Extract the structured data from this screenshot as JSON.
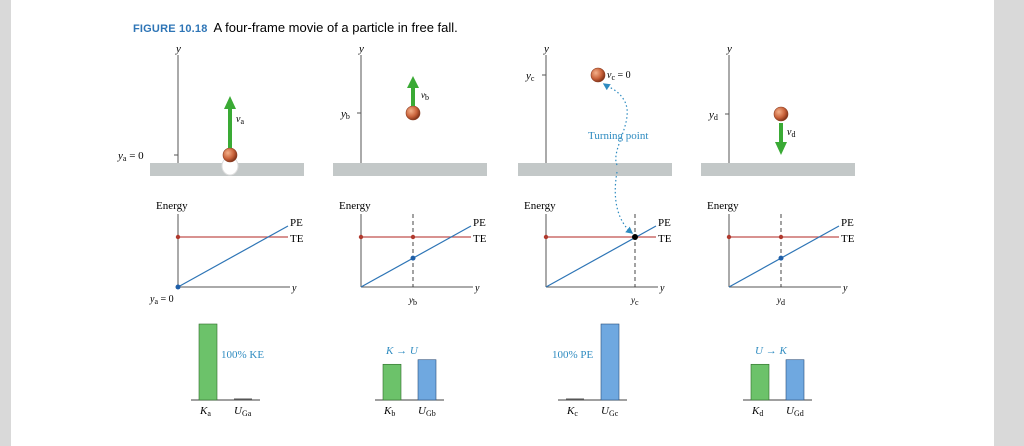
{
  "figure": {
    "label": "FIGURE 10.18",
    "caption": "A four-frame movie of a particle in free fall."
  },
  "colors": {
    "ground": "#c3c8c8",
    "ball": "#c9623a",
    "velocity_arrow": "#3aaa35",
    "te_line": "#c0504d",
    "pe_line": "#2e75b6",
    "dot_red": "#b03a2e",
    "dot_blue": "#1f5fa8",
    "turning_text": "#2e8bc0",
    "bar_green": "#6cc26a",
    "bar_blue": "#6fa8e0",
    "annotation": "#2e8bc0"
  },
  "frames": [
    {
      "y_axis": "y",
      "position_label": "ya = 0",
      "velocity_label": "va",
      "energy_axis": "Energy",
      "pe_label": "PE",
      "te_label": "TE",
      "energy_y_axis": "y",
      "energy_y_tick": "ya = 0",
      "annotation": "100% KE",
      "bars": {
        "k_label": "Ka",
        "u_label": "UGa",
        "k_fraction": 1.0,
        "u_fraction": 0.0
      }
    },
    {
      "y_axis": "y",
      "position_label": "yb",
      "velocity_label": "vb",
      "energy_axis": "Energy",
      "pe_label": "PE",
      "te_label": "TE",
      "energy_y_axis": "y",
      "energy_y_tick": "yb",
      "annotation": "K → U",
      "bars": {
        "k_label": "Kb",
        "u_label": "UGb",
        "k_fraction": 0.47,
        "u_fraction": 0.53
      }
    },
    {
      "y_axis": "y",
      "position_label": "yc",
      "velocity_label": "vc = 0",
      "turning_point": "Turning point",
      "energy_axis": "Energy",
      "pe_label": "PE",
      "te_label": "TE",
      "energy_y_axis": "y",
      "energy_y_tick": "yc",
      "annotation": "100% PE",
      "bars": {
        "k_label": "Kc",
        "u_label": "UGc",
        "k_fraction": 0.0,
        "u_fraction": 1.0
      }
    },
    {
      "y_axis": "y",
      "position_label": "yd",
      "velocity_label": "vd",
      "energy_axis": "Energy",
      "pe_label": "PE",
      "te_label": "TE",
      "energy_y_axis": "y",
      "energy_y_tick": "yd",
      "annotation": "U → K",
      "bars": {
        "k_label": "Kd",
        "u_label": "UGd",
        "k_fraction": 0.47,
        "u_fraction": 0.53
      }
    }
  ]
}
